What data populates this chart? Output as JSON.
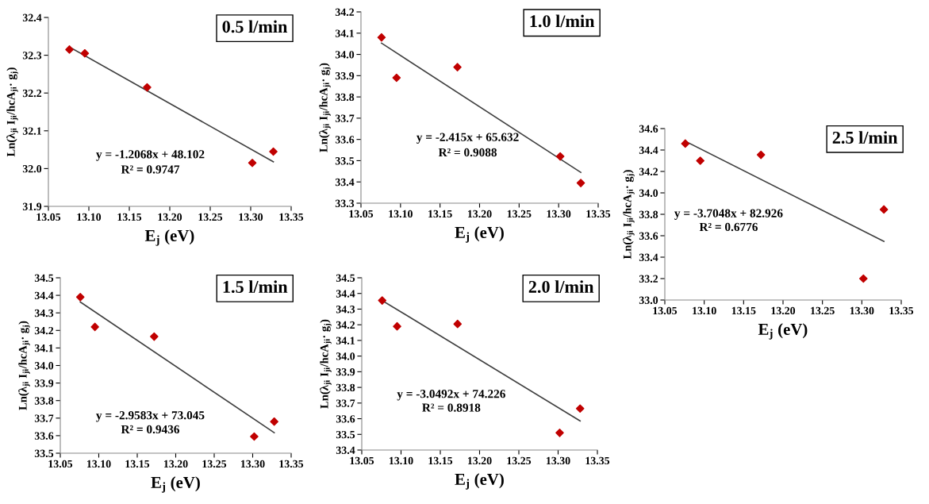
{
  "chart_data": [
    {
      "type": "scatter",
      "title": "0.5 l/min",
      "xlabel": "E$_{j}$ (eV)",
      "ylabel": "Ln(λ$_{ji}$ I$_{ji}$/hcA$_{ji}$· g$_{j}$)",
      "annotations": [
        "y = -1.2068x + 48.102",
        "R² = 0.9747"
      ],
      "grid": false,
      "xlim": [
        13.05,
        13.35
      ],
      "xticks": [
        13.05,
        {
          "value": 13.1,
          "label": "13.10"
        },
        13.15,
        {
          "value": 13.2,
          "label": "13.20"
        },
        13.25,
        {
          "value": 13.3,
          "label": "13.30"
        },
        13.35
      ],
      "ylim": [
        31.9,
        32.4
      ],
      "yticks": [
        31.9,
        {
          "value": 32,
          "label": "32.0"
        },
        32.1,
        32.2,
        32.3,
        32.4
      ],
      "series": [
        {
          "color": "#c00000",
          "marker": "diamond",
          "x": [
            13.076,
            13.095,
            13.172,
            13.302,
            13.328
          ],
          "values": [
            32.315,
            32.305,
            32.215,
            32.015,
            32.045
          ]
        },
        {
          "type": "line",
          "marker": "none",
          "color": "#404040",
          "x": [
            13.076,
            13.328
          ],
          "values": [
            32.322,
            32.018
          ]
        }
      ]
    },
    {
      "type": "scatter",
      "title": "1.0 l/min",
      "xlabel": "E$_{j}$ (eV)",
      "ylabel": "Ln(λ$_{ji}$ I$_{ji}$/hcA$_{ji}$· g$_{j}$)",
      "annotations": [
        "y = -2.415x + 65.632",
        "R² = 0.9088"
      ],
      "grid": false,
      "xlim": [
        13.05,
        13.35
      ],
      "xticks": [
        13.05,
        {
          "value": 13.1,
          "label": "13.10"
        },
        13.15,
        {
          "value": 13.2,
          "label": "13.20"
        },
        13.25,
        {
          "value": 13.3,
          "label": "13.30"
        },
        13.35
      ],
      "ylim": [
        33.3,
        34.2
      ],
      "yticks": [
        33.3,
        33.4,
        33.5,
        33.6,
        33.7,
        33.8,
        33.9,
        {
          "value": 34,
          "label": "34.0"
        },
        34.1,
        34.2
      ],
      "series": [
        {
          "color": "#c00000",
          "marker": "diamond",
          "x": [
            13.076,
            13.095,
            13.172,
            13.302,
            13.328
          ],
          "values": [
            34.08,
            33.89,
            33.94,
            33.52,
            33.395
          ]
        },
        {
          "type": "line",
          "marker": "none",
          "color": "#404040",
          "x": [
            13.076,
            13.328
          ],
          "values": [
            34.053,
            33.445
          ]
        }
      ]
    },
    {
      "type": "scatter",
      "title": "1.5 l/min",
      "xlabel": "E$_{j}$ (eV)",
      "ylabel": "Ln(λ$_{ji}$ I$_{ji}$/hcA$_{ji}$· g$_{j}$)",
      "annotations": [
        "y = -2.9583x + 73.045",
        "R² = 0.9436"
      ],
      "grid": false,
      "xlim": [
        13.05,
        13.35
      ],
      "xticks": [
        13.05,
        {
          "value": 13.1,
          "label": "13.10"
        },
        13.15,
        {
          "value": 13.2,
          "label": "13.20"
        },
        13.25,
        {
          "value": 13.3,
          "label": "13.30"
        },
        13.35
      ],
      "ylim": [
        33.5,
        34.5
      ],
      "yticks": [
        33.5,
        33.6,
        33.7,
        33.8,
        33.9,
        {
          "value": 34,
          "label": "34.0"
        },
        34.1,
        34.2,
        34.3,
        34.4,
        34.5
      ],
      "series": [
        {
          "color": "#c00000",
          "marker": "diamond",
          "x": [
            13.076,
            13.095,
            13.172,
            13.302,
            13.328
          ],
          "values": [
            34.39,
            34.22,
            34.165,
            33.595,
            33.68
          ]
        },
        {
          "type": "line",
          "marker": "none",
          "color": "#404040",
          "x": [
            13.076,
            13.328
          ],
          "values": [
            34.362,
            33.617
          ]
        }
      ]
    },
    {
      "type": "scatter",
      "title": "2.0 l/min",
      "xlabel": "E$_{j}$ (eV)",
      "ylabel": "Ln(λ$_{ji}$ I$_{ji}$/hcA$_{ji}$· g$_{j}$)",
      "annotations": [
        "y = -3.0492x + 74.226",
        "R² = 0.8918"
      ],
      "grid": false,
      "xlim": [
        13.05,
        13.35
      ],
      "xticks": [
        13.05,
        {
          "value": 13.1,
          "label": "13.10"
        },
        13.15,
        {
          "value": 13.2,
          "label": "13.20"
        },
        13.25,
        {
          "value": 13.3,
          "label": "13.30"
        },
        13.35
      ],
      "ylim": [
        33.4,
        34.5
      ],
      "yticks": [
        33.4,
        33.5,
        33.6,
        33.7,
        33.8,
        33.9,
        {
          "value": 34,
          "label": "34.0"
        },
        34.1,
        34.2,
        34.3,
        34.4,
        34.5
      ],
      "series": [
        {
          "color": "#c00000",
          "marker": "diamond",
          "x": [
            13.076,
            13.095,
            13.172,
            13.302,
            13.328
          ],
          "values": [
            34.355,
            34.19,
            34.205,
            33.51,
            33.665
          ]
        },
        {
          "type": "line",
          "marker": "none",
          "color": "#404040",
          "x": [
            13.076,
            13.328
          ],
          "values": [
            34.355,
            33.586
          ]
        }
      ]
    },
    {
      "type": "scatter",
      "title": "2.5 l/min",
      "xlabel": "E$_{j}$ (eV)",
      "ylabel": "Ln(λ$_{ji}$ I$_{ji}$/hcA$_{ji}$· g$_{j}$)",
      "annotations": [
        "y = -3.7048x + 82.926",
        "R² = 0.6776"
      ],
      "grid": false,
      "xlim": [
        13.05,
        13.35
      ],
      "xticks": [
        13.05,
        {
          "value": 13.1,
          "label": "13.10"
        },
        13.15,
        {
          "value": 13.2,
          "label": "13.20"
        },
        13.25,
        {
          "value": 13.3,
          "label": "13.30"
        },
        13.35
      ],
      "ylim": [
        33.0,
        34.6
      ],
      "yticks": [
        {
          "value": 33,
          "label": "33.0"
        },
        33.2,
        33.4,
        33.6,
        33.8,
        {
          "value": 34,
          "label": "34.0"
        },
        34.2,
        34.4,
        34.6
      ],
      "series": [
        {
          "color": "#c00000",
          "marker": "diamond",
          "x": [
            13.076,
            13.095,
            13.172,
            13.302,
            13.328
          ],
          "values": [
            34.46,
            34.3,
            34.355,
            33.2,
            33.845
          ]
        },
        {
          "type": "line",
          "marker": "none",
          "color": "#404040",
          "x": [
            13.076,
            13.328
          ],
          "values": [
            34.482,
            33.548
          ]
        }
      ]
    }
  ]
}
